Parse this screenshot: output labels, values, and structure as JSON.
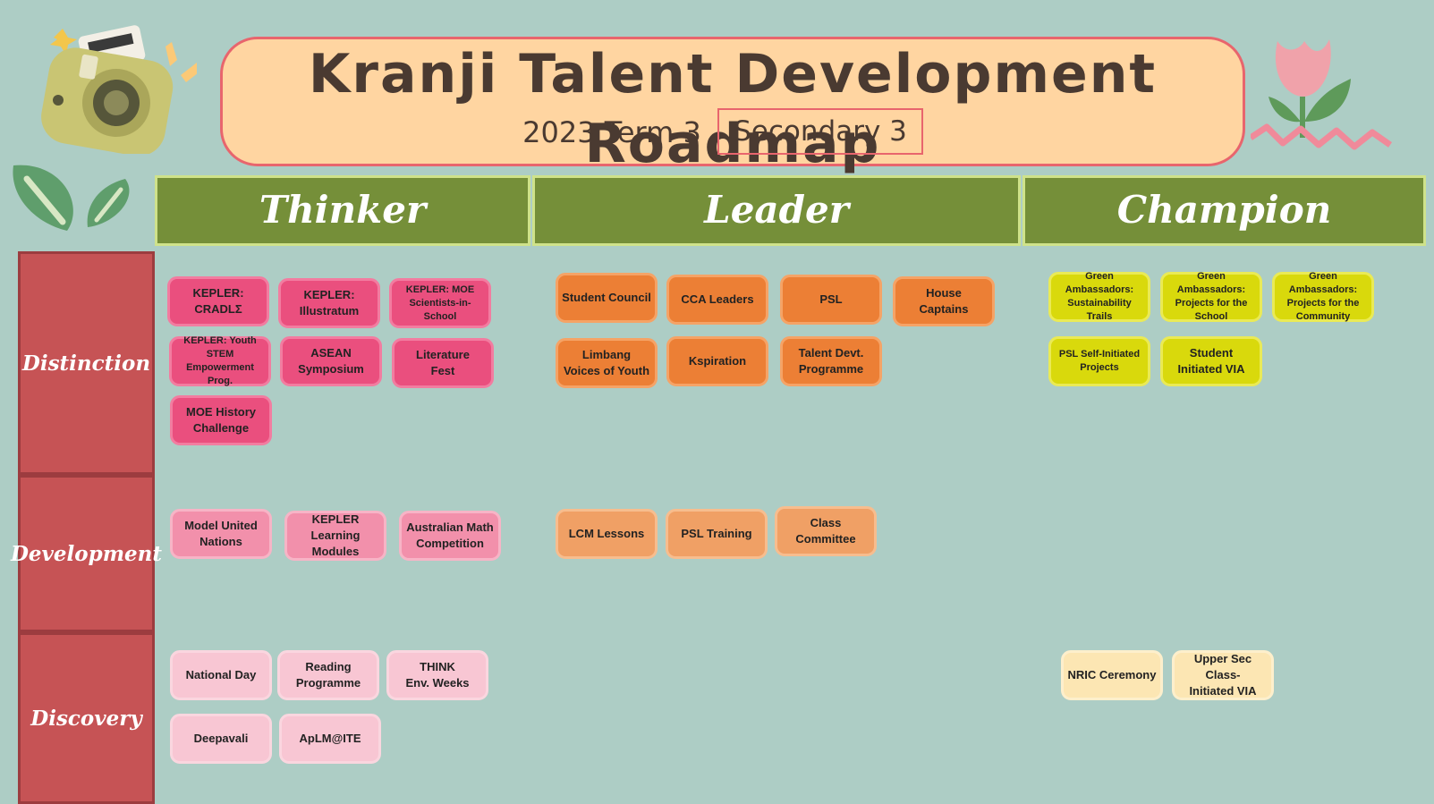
{
  "header": {
    "title": "Kranji Talent Development Roadmap",
    "term": "2023 Term 3",
    "level": "Secondary 3"
  },
  "columns": {
    "thinker": "Thinker",
    "leader": "Leader",
    "champion": "Champion"
  },
  "rows": {
    "distinction": "Distinction",
    "development": "Development",
    "discovery": "Discovery"
  },
  "thinker": {
    "distinction": [
      "KEPLER:\nCRADLΣ",
      "KEPLER:\nIllustratum",
      "KEPLER: MOE\nScientists-in-School",
      "KEPLER: Youth STEM\nEmpowerment Prog.",
      "ASEAN\nSymposium",
      "Literature\nFest",
      "MOE History\nChallenge"
    ],
    "development": [
      "Model United\nNations",
      "KEPLER Learning\nModules",
      "Australian Math\nCompetition"
    ],
    "discovery": [
      "National Day",
      "Reading\nProgramme",
      "THINK\nEnv. Weeks",
      "Deepavali",
      "ApLM@ITE"
    ]
  },
  "leader": {
    "distinction": [
      "Student Council",
      "CCA Leaders",
      "PSL",
      "House\nCaptains",
      "Limbang\nVoices of Youth",
      "Kspiration",
      "Talent Devt.\nProgramme"
    ],
    "development": [
      "LCM Lessons",
      "PSL Training",
      "Class\nCommittee"
    ]
  },
  "champion": {
    "distinction": [
      "Green Ambassadors:\nSustainability Trails",
      "Green Ambassadors:\nProjects for the\nSchool",
      "Green Ambassadors:\nProjects for the\nCommunity",
      "PSL Self-Initiated\nProjects",
      "Student\nInitiated VIA"
    ],
    "discovery": [
      "NRIC Ceremony",
      "Upper Sec Class-\nInitiated VIA"
    ]
  },
  "colors": {
    "background": "#adcdc5",
    "banner": "#ffd5a1",
    "banner_border": "#e8656d",
    "column_header": "#758f39",
    "row_header": "#c65355"
  },
  "icons": [
    "camera-icon",
    "sparkle-icon",
    "leaf-icon",
    "tulip-icon"
  ]
}
